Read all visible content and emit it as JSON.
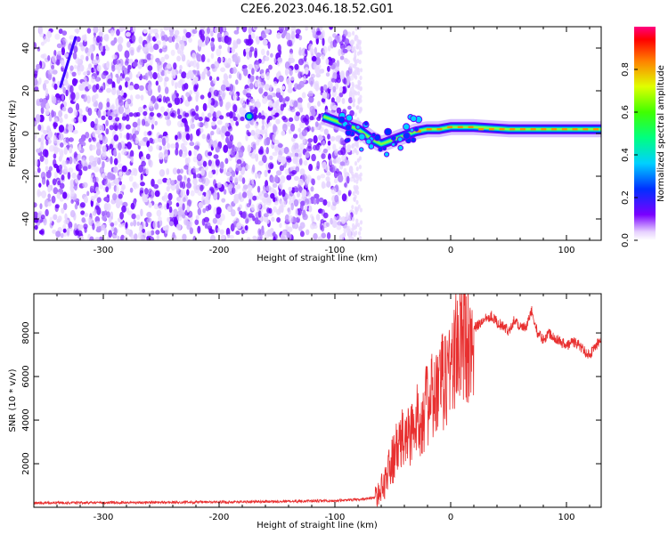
{
  "title": "C2E6.2023.046.18.52.G01",
  "colors": {
    "signal_low": "#6a00ff",
    "signal_ridge": "#00e0c0",
    "signal_peak": "#ff2020",
    "snr_line": "#e83030"
  },
  "chart_data": [
    {
      "type": "heatmap",
      "title": "C2E6.2023.046.18.52.G01",
      "xlabel": "Height of straight line (km)",
      "ylabel": "Frequency (Hz)",
      "xlim": [
        -360,
        130
      ],
      "ylim": [
        -50,
        50
      ],
      "x_ticks": [
        -300,
        -200,
        -100,
        0,
        100
      ],
      "y_ticks": [
        -40,
        -20,
        0,
        20,
        40
      ],
      "grid": false,
      "noise_region_x": [
        -360,
        -85
      ],
      "ridge": {
        "description_points_x": [
          -110,
          -95,
          -80,
          -70,
          -60,
          -50,
          -40,
          -30,
          -20,
          -10,
          0,
          20,
          50,
          80,
          100,
          130
        ],
        "description_points_y": [
          8,
          5,
          2,
          -2,
          -5,
          -3,
          -1,
          1,
          2,
          2,
          3,
          3,
          2,
          2,
          2,
          2
        ]
      },
      "colorbar": {
        "label": "Normalized spectral amplitude",
        "range": [
          0.0,
          1.0
        ],
        "ticks": [
          0.0,
          0.2,
          0.4,
          0.6,
          0.8
        ]
      }
    },
    {
      "type": "line",
      "xlabel": "Height of straight line (km)",
      "ylabel": "SNR (10 * v/v)",
      "xlim": [
        -360,
        130
      ],
      "ylim": [
        0,
        9800
      ],
      "x_ticks": [
        -300,
        -200,
        -100,
        0,
        100
      ],
      "y_ticks": [
        2000,
        4000,
        6000,
        8000
      ],
      "grid": false,
      "series": [
        {
          "x": [
            -360,
            -300,
            -200,
            -100,
            -80,
            -65,
            -60,
            -55,
            -50,
            -45,
            -40,
            -35,
            -30,
            -25,
            -20,
            -15,
            -10,
            -5,
            0,
            5,
            10,
            15,
            20,
            25,
            30,
            35,
            40,
            45,
            50,
            55,
            60,
            65,
            70,
            75,
            80,
            85,
            90,
            95,
            100,
            105,
            110,
            115,
            120,
            125,
            130
          ],
          "y": [
            200,
            210,
            240,
            300,
            350,
            450,
            800,
            1500,
            2200,
            2800,
            3200,
            3400,
            3800,
            4300,
            4700,
            5000,
            5400,
            5900,
            6600,
            7200,
            7700,
            7900,
            8200,
            8400,
            8700,
            8800,
            8500,
            8300,
            8100,
            8600,
            8300,
            8200,
            9000,
            8000,
            7700,
            8000,
            7800,
            7600,
            7400,
            7600,
            7500,
            7200,
            7000,
            7400,
            7700
          ]
        }
      ]
    }
  ]
}
